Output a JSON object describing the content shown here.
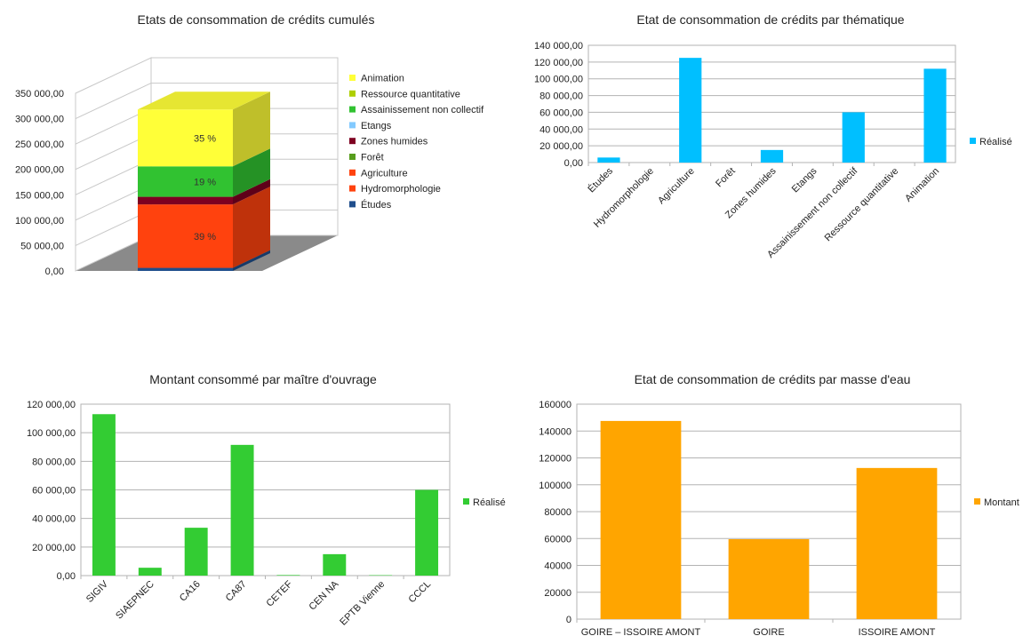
{
  "chart_data": [
    {
      "id": "stacked3d",
      "type": "bar",
      "stacked": true,
      "three_d": true,
      "title": "Etats de consommation de crédits cumulés",
      "ylim": [
        0,
        350000
      ],
      "y_ticks": [
        "0,00",
        "50 000,00",
        "100 000,00",
        "150 000,00",
        "200 000,00",
        "250 000,00",
        "300 000,00",
        "350 000,00"
      ],
      "grid": true,
      "legend_position": "right",
      "series": [
        {
          "name": "Études",
          "value": 6000,
          "color": "#1f4e8c"
        },
        {
          "name": "Hydromorphologie",
          "value": 0,
          "color": "#ff420e"
        },
        {
          "name": "Agriculture",
          "value": 125000,
          "color": "#ff420e"
        },
        {
          "name": "Forêt",
          "value": 0,
          "color": "#579d1c"
        },
        {
          "name": "Zones humides",
          "value": 15000,
          "color": "#7e0021"
        },
        {
          "name": "Etangs",
          "value": 0,
          "color": "#83caff"
        },
        {
          "name": "Assainissement non collectif",
          "value": 60000,
          "color": "#31c231"
        },
        {
          "name": "Ressource quantitative",
          "value": 0,
          "color": "#aecf00"
        },
        {
          "name": "Animation",
          "value": 112000,
          "color": "#ffff38"
        }
      ],
      "data_labels": [
        {
          "series": "Agriculture",
          "text": "39 %"
        },
        {
          "series": "Assainissement non collectif",
          "text": "19 %"
        },
        {
          "series": "Animation",
          "text": "35 %"
        }
      ]
    },
    {
      "id": "thematique",
      "type": "bar",
      "title": "Etat de consommation de crédits par thématique",
      "ylim": [
        0,
        140000
      ],
      "y_ticks": [
        "0,00",
        "20 000,00",
        "40 000,00",
        "60 000,00",
        "80 000,00",
        "100 000,00",
        "120 000,00",
        "140 000,00"
      ],
      "grid": true,
      "legend_position": "right",
      "color": "#00bfff",
      "categories": [
        "Études",
        "Hydromorphologie",
        "Agriculture",
        "Forêt",
        "Zones humides",
        "Etangs",
        "Assainissement non collectif",
        "Ressource quantitative",
        "Animation"
      ],
      "series": [
        {
          "name": "Réalisé",
          "values": [
            6000,
            0,
            125000,
            0,
            15000,
            0,
            60000,
            0,
            112000
          ]
        }
      ]
    },
    {
      "id": "maitre",
      "type": "bar",
      "title": "Montant consommé par maître d'ouvrage",
      "ylim": [
        0,
        120000
      ],
      "y_ticks": [
        "0,00",
        "20 000,00",
        "40 000,00",
        "60 000,00",
        "80 000,00",
        "100 000,00",
        "120 000,00"
      ],
      "grid": true,
      "legend_position": "right",
      "color": "#33cc33",
      "categories": [
        "SIGIV",
        "SIAEPNEC",
        "CA16",
        "CA87",
        "CETEF",
        "CEN NA",
        "EPTB Vienne",
        "CCCL"
      ],
      "series": [
        {
          "name": "Réalisé",
          "values": [
            113000,
            5500,
            33500,
            91500,
            400,
            15000,
            300,
            60000
          ]
        }
      ]
    },
    {
      "id": "masse",
      "type": "bar",
      "title": "Etat de consommation de crédits par masse d'eau",
      "ylim": [
        0,
        160000
      ],
      "y_ticks": [
        "0",
        "20000",
        "40000",
        "60000",
        "80000",
        "100000",
        "120000",
        "140000",
        "160000"
      ],
      "grid": true,
      "legend_position": "right",
      "color": "#ffa500",
      "categories": [
        "GOIRE – ISSOIRE AMONT",
        "GOIRE",
        "ISSOIRE AMONT"
      ],
      "series": [
        {
          "name": "Montant",
          "values": [
            147500,
            59500,
            112500
          ]
        }
      ]
    }
  ]
}
